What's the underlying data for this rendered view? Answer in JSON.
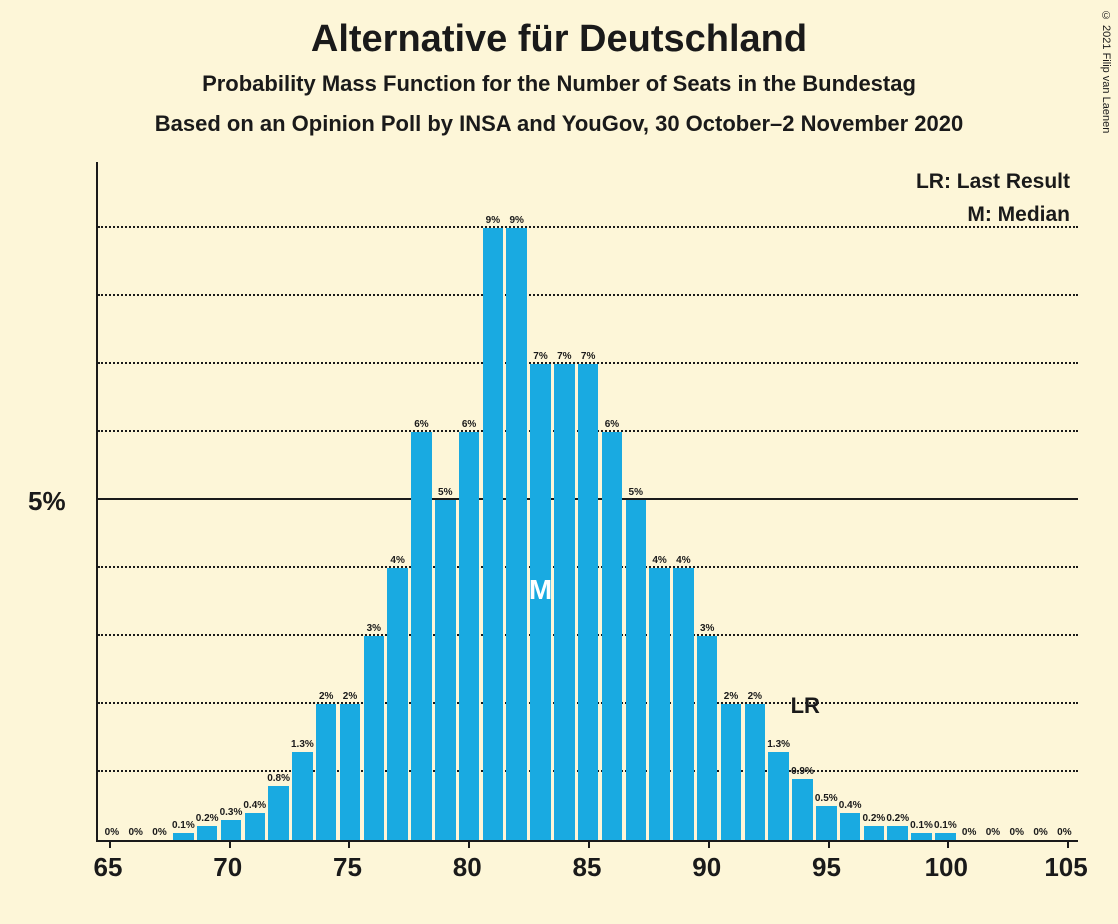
{
  "copyright": "© 2021 Filip van Laenen",
  "title": "Alternative für Deutschland",
  "subtitle1": "Probability Mass Function for the Number of Seats in the Bundestag",
  "subtitle2": "Based on an Opinion Poll by INSA and YouGov, 30 October–2 November 2020",
  "legend": {
    "lr": "LR: Last Result",
    "m": "M: Median"
  },
  "chart": {
    "type": "bar",
    "bar_color": "#19aae1",
    "background_color": "#fdf6d8",
    "axis_color": "#1a1a1a",
    "grid_color": "#1a1a1a",
    "grid_style": "dotted",
    "xlim": [
      65,
      105
    ],
    "ylim": [
      0,
      10
    ],
    "y_ref_solid": 5,
    "y_label": "5%",
    "y_grid": [
      1,
      2,
      3,
      4,
      5,
      6,
      7,
      8,
      9
    ],
    "x_ticks": [
      65,
      70,
      75,
      80,
      85,
      90,
      95,
      100,
      105
    ],
    "median_seat": 83,
    "lr_seat": 94,
    "lr_text": "LR",
    "m_text": "M",
    "bar_label_fontsize": 10,
    "axis_label_fontsize": 26,
    "title_fontsize": 38,
    "subtitle_fontsize": 22,
    "bars": [
      {
        "x": 65,
        "v": 0,
        "label": "0%"
      },
      {
        "x": 66,
        "v": 0,
        "label": "0%"
      },
      {
        "x": 67,
        "v": 0,
        "label": "0%"
      },
      {
        "x": 68,
        "v": 0.1,
        "label": "0.1%"
      },
      {
        "x": 69,
        "v": 0.2,
        "label": "0.2%"
      },
      {
        "x": 70,
        "v": 0.3,
        "label": "0.3%"
      },
      {
        "x": 71,
        "v": 0.4,
        "label": "0.4%"
      },
      {
        "x": 72,
        "v": 0.8,
        "label": "0.8%"
      },
      {
        "x": 73,
        "v": 1.3,
        "label": "1.3%"
      },
      {
        "x": 74,
        "v": 2,
        "label": "2%"
      },
      {
        "x": 75,
        "v": 2,
        "label": "2%"
      },
      {
        "x": 76,
        "v": 3,
        "label": "3%"
      },
      {
        "x": 77,
        "v": 4,
        "label": "4%"
      },
      {
        "x": 78,
        "v": 6,
        "label": "6%"
      },
      {
        "x": 79,
        "v": 5,
        "label": "5%"
      },
      {
        "x": 80,
        "v": 6,
        "label": "6%"
      },
      {
        "x": 81,
        "v": 9,
        "label": "9%"
      },
      {
        "x": 82,
        "v": 9,
        "label": "9%"
      },
      {
        "x": 83,
        "v": 7,
        "label": "7%"
      },
      {
        "x": 84,
        "v": 7,
        "label": "7%"
      },
      {
        "x": 85,
        "v": 7,
        "label": "7%"
      },
      {
        "x": 86,
        "v": 6,
        "label": "6%"
      },
      {
        "x": 87,
        "v": 5,
        "label": "5%"
      },
      {
        "x": 88,
        "v": 4,
        "label": "4%"
      },
      {
        "x": 89,
        "v": 4,
        "label": "4%"
      },
      {
        "x": 90,
        "v": 3,
        "label": "3%"
      },
      {
        "x": 91,
        "v": 2,
        "label": "2%"
      },
      {
        "x": 92,
        "v": 2,
        "label": "2%"
      },
      {
        "x": 93,
        "v": 1.3,
        "label": "1.3%"
      },
      {
        "x": 94,
        "v": 0.9,
        "label": "0.9%"
      },
      {
        "x": 95,
        "v": 0.5,
        "label": "0.5%"
      },
      {
        "x": 96,
        "v": 0.4,
        "label": "0.4%"
      },
      {
        "x": 97,
        "v": 0.2,
        "label": "0.2%"
      },
      {
        "x": 98,
        "v": 0.2,
        "label": "0.2%"
      },
      {
        "x": 99,
        "v": 0.1,
        "label": "0.1%"
      },
      {
        "x": 100,
        "v": 0.1,
        "label": "0.1%"
      },
      {
        "x": 101,
        "v": 0,
        "label": "0%"
      },
      {
        "x": 102,
        "v": 0,
        "label": "0%"
      },
      {
        "x": 103,
        "v": 0,
        "label": "0%"
      },
      {
        "x": 104,
        "v": 0,
        "label": "0%"
      },
      {
        "x": 105,
        "v": 0,
        "label": "0%"
      }
    ]
  }
}
